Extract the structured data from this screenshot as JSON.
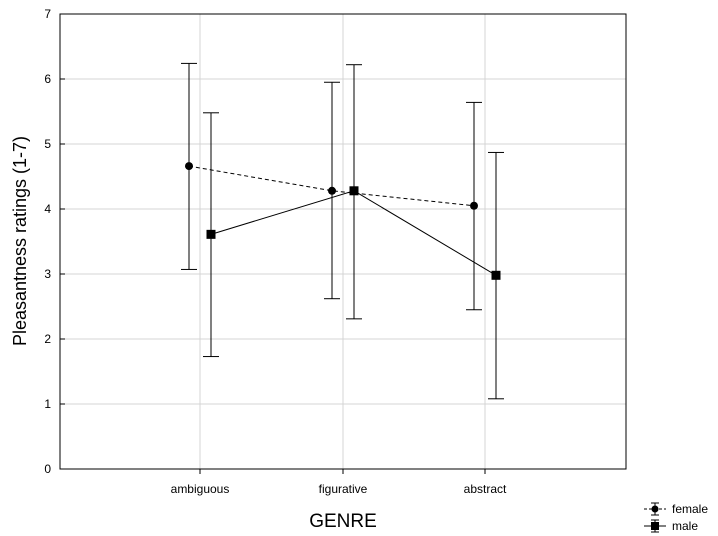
{
  "chart_data": {
    "type": "line",
    "xlabel": "GENRE",
    "ylabel": "Pleasantness ratings (1-7)",
    "categories": [
      "ambiguous",
      "figurative",
      "abstract"
    ],
    "ylim": [
      0,
      7
    ],
    "yticks": [
      "0",
      "1",
      "2",
      "3",
      "4",
      "5",
      "6",
      "7"
    ],
    "grid": true,
    "legend_position": "bottom-right, outside plot",
    "series": [
      {
        "name": "female",
        "marker": "circle",
        "line_style": "dashed",
        "values": [
          4.66,
          4.28,
          4.05
        ],
        "error_low": [
          3.07,
          2.62,
          2.45
        ],
        "error_high": [
          6.24,
          5.95,
          5.64
        ]
      },
      {
        "name": "male",
        "marker": "square",
        "line_style": "solid",
        "values": [
          3.61,
          4.28,
          2.98
        ],
        "error_low": [
          1.73,
          2.31,
          1.08
        ],
        "error_high": [
          5.48,
          6.22,
          4.87
        ]
      }
    ]
  }
}
